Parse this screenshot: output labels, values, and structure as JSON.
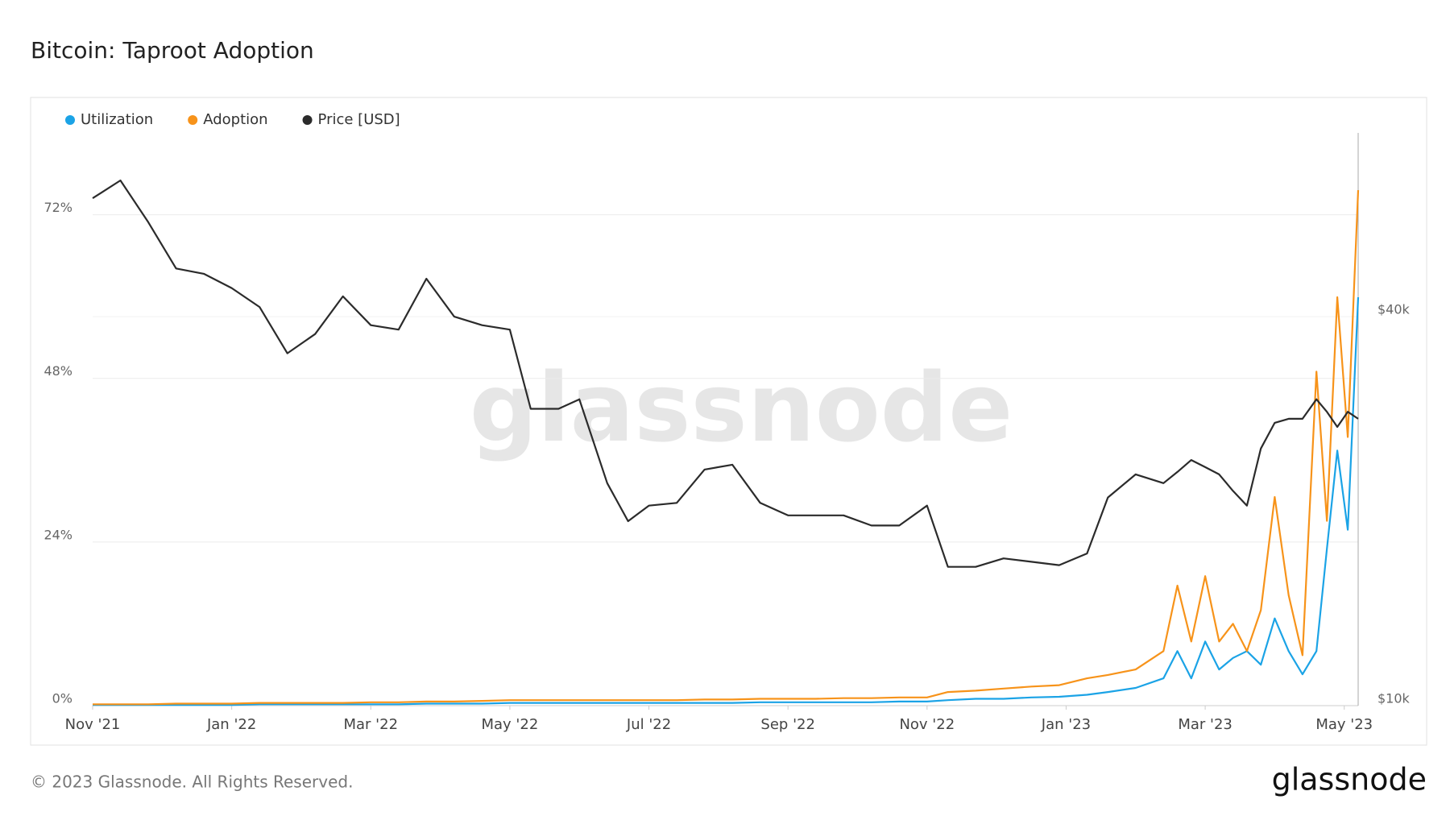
{
  "chart_data": {
    "type": "line",
    "title": "Bitcoin: Taproot Adoption",
    "watermark": "glassnode",
    "footer": "© 2023 Glassnode. All Rights Reserved.",
    "logo": "glassnode",
    "x": [
      0,
      0.4,
      0.8,
      1.2,
      1.6,
      2,
      2.4,
      2.8,
      3.2,
      3.6,
      4,
      4.4,
      4.8,
      5.2,
      5.6,
      6,
      6.3,
      6.7,
      7,
      7.4,
      7.7,
      8,
      8.4,
      8.8,
      9.2,
      9.6,
      10,
      10.4,
      10.8,
      11.2,
      11.6,
      12,
      12.3,
      12.7,
      13.1,
      13.5,
      13.9,
      14.3,
      14.6,
      15,
      15.4,
      15.6,
      15.8,
      16,
      16.2,
      16.4,
      16.6,
      16.8,
      17,
      17.2,
      17.4,
      17.6,
      17.75,
      17.9,
      18.05,
      18.2
    ],
    "xlim": [
      0,
      18.2
    ],
    "xticks": [
      {
        "value": 0,
        "label": "Nov '21"
      },
      {
        "value": 2,
        "label": "Jan '22"
      },
      {
        "value": 4,
        "label": "Mar '22"
      },
      {
        "value": 6,
        "label": "May '22"
      },
      {
        "value": 8,
        "label": "Jul '22"
      },
      {
        "value": 10,
        "label": "Sep '22"
      },
      {
        "value": 12,
        "label": "Nov '22"
      },
      {
        "value": 14,
        "label": "Jan '23"
      },
      {
        "value": 16,
        "label": "Mar '23"
      },
      {
        "value": 18,
        "label": "May '23"
      }
    ],
    "ylim": [
      0,
      84
    ],
    "yticks": [
      {
        "value": 0,
        "label": "0%"
      },
      {
        "value": 24,
        "label": "24%"
      },
      {
        "value": 48,
        "label": "48%"
      },
      {
        "value": 72,
        "label": "72%"
      }
    ],
    "y2lim": [
      10000,
      77000
    ],
    "y2log": true,
    "y2ticks": [
      {
        "value": 10000,
        "label": "$10k"
      },
      {
        "value": 40000,
        "label": "$40k"
      }
    ],
    "grid": true,
    "legend": "top-left",
    "series": [
      {
        "name": "Utilization",
        "color": "#1ba3e6",
        "values": [
          0.1,
          0.1,
          0.1,
          0.1,
          0.1,
          0.1,
          0.2,
          0.2,
          0.2,
          0.2,
          0.2,
          0.2,
          0.3,
          0.3,
          0.3,
          0.4,
          0.4,
          0.4,
          0.4,
          0.4,
          0.4,
          0.4,
          0.4,
          0.4,
          0.4,
          0.5,
          0.5,
          0.5,
          0.5,
          0.5,
          0.6,
          0.6,
          0.8,
          1,
          1,
          1.2,
          1.3,
          1.6,
          2,
          2.6,
          4,
          8,
          4,
          9.4,
          5.3,
          7,
          8,
          6,
          12.8,
          8,
          4.6,
          8,
          23,
          37.4,
          25.8,
          59.9
        ]
      },
      {
        "name": "Adoption",
        "color": "#f7931a",
        "values": [
          0.2,
          0.2,
          0.2,
          0.3,
          0.3,
          0.3,
          0.4,
          0.4,
          0.4,
          0.4,
          0.5,
          0.5,
          0.6,
          0.6,
          0.7,
          0.8,
          0.8,
          0.8,
          0.8,
          0.8,
          0.8,
          0.8,
          0.8,
          0.9,
          0.9,
          1,
          1,
          1,
          1.1,
          1.1,
          1.2,
          1.2,
          2,
          2.2,
          2.5,
          2.8,
          3,
          4,
          4.5,
          5.3,
          8,
          17.6,
          9.4,
          19,
          9.4,
          12,
          8,
          14,
          30.6,
          16.2,
          7.4,
          49,
          27.1,
          59.9,
          39.4,
          75.6
        ]
      },
      {
        "name": "Price [USD]",
        "color": "#2b2b2b",
        "axis": "y2",
        "values": [
          61000,
          65000,
          56000,
          47500,
          46600,
          44300,
          41400,
          35100,
          37600,
          43000,
          38800,
          38200,
          45800,
          40000,
          38800,
          38200,
          28800,
          28800,
          29800,
          22100,
          19300,
          20400,
          20600,
          23200,
          23600,
          20600,
          19700,
          19700,
          19700,
          19000,
          19000,
          20400,
          16400,
          16400,
          16900,
          16700,
          16500,
          17200,
          21000,
          22800,
          22100,
          23000,
          24000,
          23400,
          22800,
          21500,
          20400,
          25000,
          27400,
          27800,
          27800,
          29800,
          28500,
          27000,
          28500,
          27800
        ]
      }
    ]
  }
}
